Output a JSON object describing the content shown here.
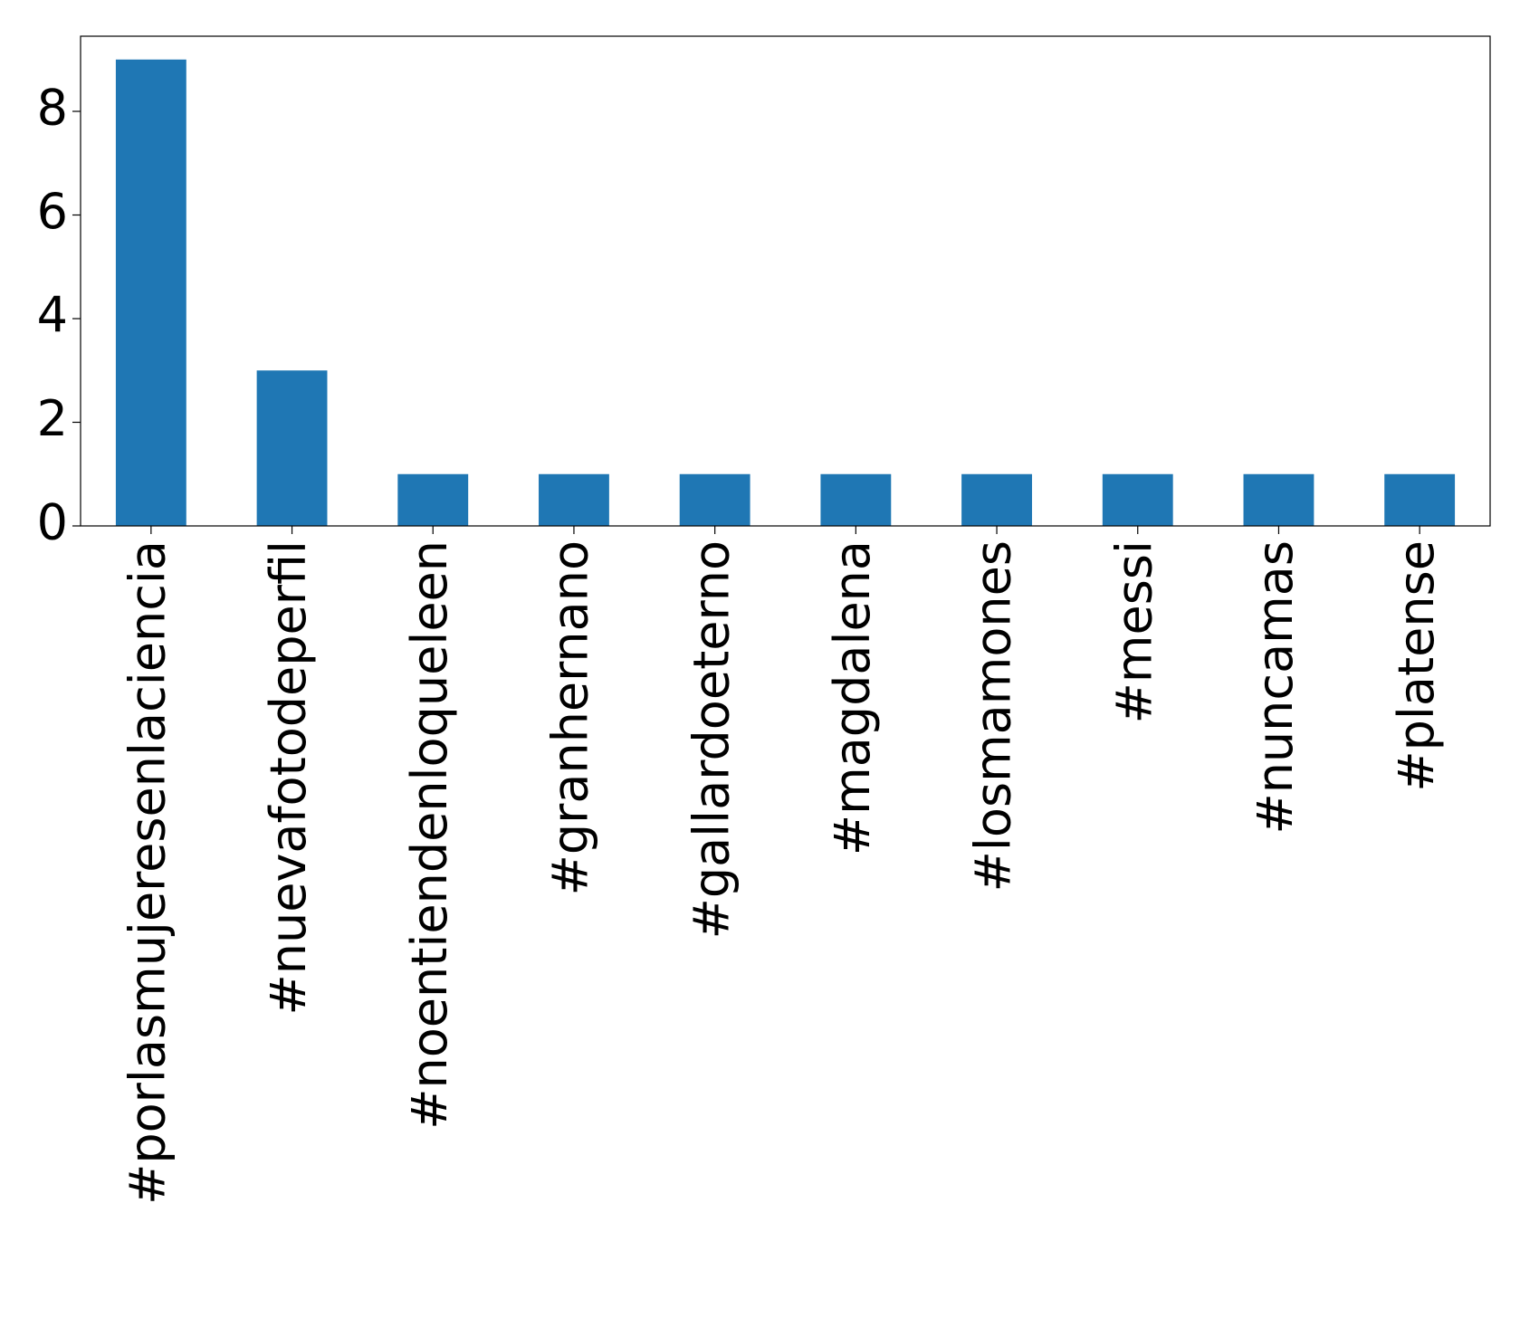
{
  "chart_data": {
    "type": "bar",
    "categories": [
      "#porlasmujeresenlaciencia",
      "#nuevafotodeperfil",
      "#noentiendenloqueleen",
      "#granhernano",
      "#gallardoeterno",
      "#magdalena",
      "#losmamones",
      "#messi",
      "#nuncamas",
      "#platense"
    ],
    "values": [
      9,
      3,
      1,
      1,
      1,
      1,
      1,
      1,
      1,
      1
    ],
    "color": "#1f77b4",
    "ylim": [
      0,
      9.45
    ],
    "yticks": [
      0,
      2,
      4,
      6,
      8
    ],
    "grid": false
  }
}
